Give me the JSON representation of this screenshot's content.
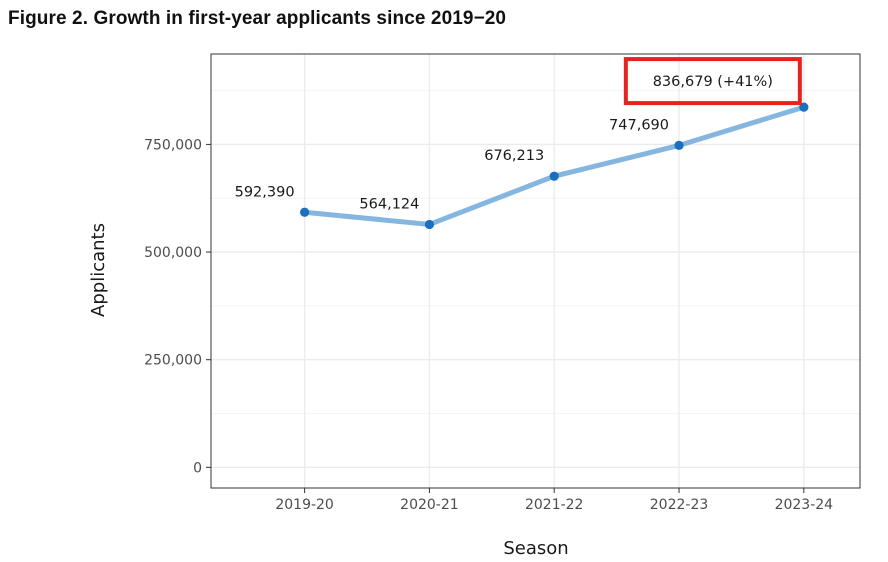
{
  "figure_title": "Figure 2. Growth in first-year applicants since 2019−20",
  "chart_data": {
    "type": "line",
    "title": "Figure 2. Growth in first-year applicants since 2019−20",
    "xlabel": "Season",
    "ylabel": "Applicants",
    "categories": [
      "2019-20",
      "2020-21",
      "2021-22",
      "2022-23",
      "2023-24"
    ],
    "values": [
      592390,
      564124,
      676213,
      747690,
      836679
    ],
    "data_labels": [
      "592,390",
      "564,124",
      "676,213",
      "747,690",
      "836,679 (+41%)"
    ],
    "highlighted_point": "2023-24",
    "ylim": [
      -48000,
      960000
    ],
    "y_ticks": [
      0,
      250000,
      500000,
      750000
    ],
    "y_tick_labels": [
      "0",
      "250,000",
      "500,000",
      "750,000"
    ],
    "grid": true,
    "colors": {
      "line": "#85b6e0",
      "marker": "#1a6fbe",
      "highlight_box": "#e8221c",
      "panel_border": "#333333",
      "grid": "#ebebeb"
    }
  }
}
